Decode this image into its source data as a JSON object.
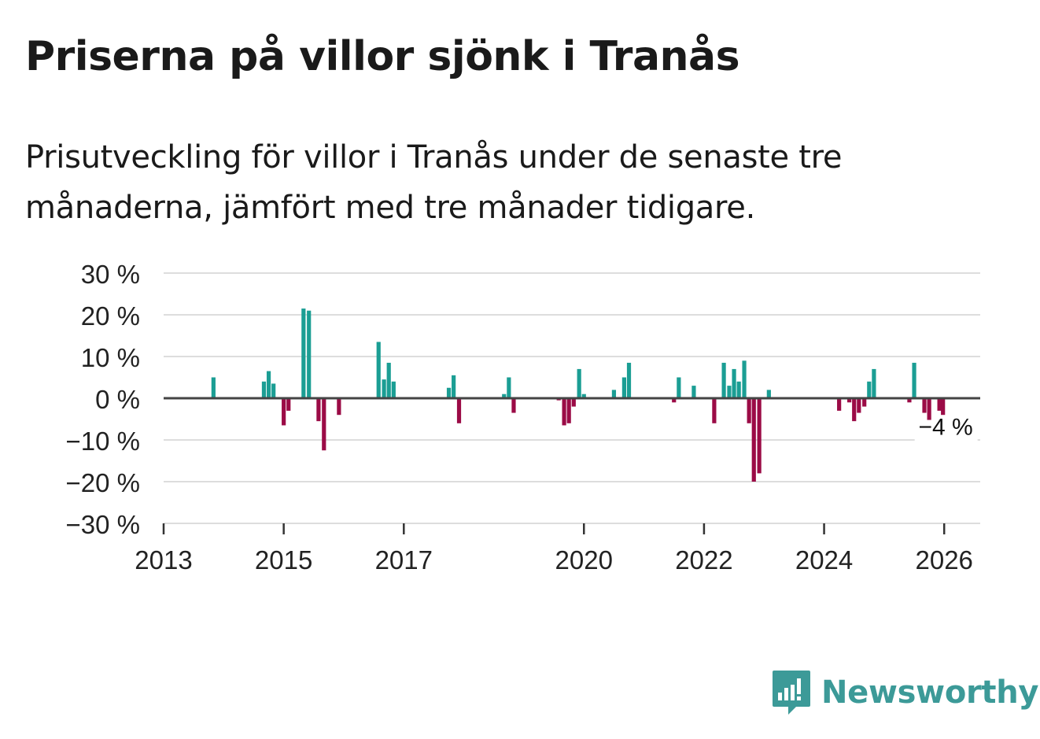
{
  "title": "Priserna på villor sjönk i Tranås",
  "subtitle": "Prisutveckling för villor i Tranås under de senaste tre månaderna, jämfört med tre månader tidigare.",
  "brand": {
    "name": "Newsworthy"
  },
  "colors": {
    "positive": "#1b9e94",
    "negative": "#9b0b46",
    "grid": "#dddddd",
    "zero_line": "#444444",
    "text": "#1a1a1a",
    "brand": "#3c9a98"
  },
  "chart_data": {
    "type": "bar",
    "title": "Priserna på villor sjönk i Tranås",
    "xlabel": "",
    "ylabel": "",
    "ylim": [
      -30,
      30
    ],
    "y_ticks": [
      30,
      20,
      10,
      0,
      -10,
      -20,
      -30
    ],
    "y_tick_labels": [
      "30 %",
      "20 %",
      "10 %",
      "0 %",
      "−10 %",
      "−20 %",
      "−30 %"
    ],
    "xlim": [
      2013.0,
      2026.6
    ],
    "x_ticks": [
      2013,
      2015,
      2017,
      2020,
      2022,
      2024,
      2026
    ],
    "x_tick_labels": [
      "2013",
      "2015",
      "2017",
      "2020",
      "2022",
      "2024",
      "2026"
    ],
    "annotation": {
      "text": "−4 %",
      "x": 2025.98,
      "y": -4
    },
    "x": [
      2013.83,
      2014.67,
      2014.75,
      2014.83,
      2015.0,
      2015.08,
      2015.33,
      2015.42,
      2015.58,
      2015.67,
      2015.92,
      2016.58,
      2016.67,
      2016.75,
      2016.83,
      2017.75,
      2017.83,
      2017.92,
      2018.67,
      2018.75,
      2018.83,
      2019.58,
      2019.67,
      2019.75,
      2019.83,
      2019.92,
      2020.0,
      2020.5,
      2020.67,
      2020.75,
      2021.5,
      2021.58,
      2021.83,
      2022.17,
      2022.33,
      2022.42,
      2022.5,
      2022.58,
      2022.67,
      2022.75,
      2022.83,
      2022.92,
      2023.08,
      2024.25,
      2024.42,
      2024.5,
      2024.58,
      2024.67,
      2024.75,
      2024.83,
      2025.42,
      2025.5,
      2025.67,
      2025.75,
      2025.92,
      2025.98
    ],
    "values": [
      5,
      4,
      6.5,
      3.5,
      -6.5,
      -3,
      21.5,
      21,
      -5.5,
      -12.5,
      -4,
      13.5,
      4.5,
      8.5,
      4,
      2.5,
      5.5,
      -6,
      1,
      5,
      -3.5,
      -0.5,
      -6.5,
      -6,
      -2,
      7,
      1,
      2,
      5,
      8.5,
      -1,
      5,
      3,
      -6,
      8.5,
      3,
      7,
      4,
      9,
      -6,
      -20,
      -18,
      2,
      -3,
      -1,
      -5.5,
      -3.5,
      -2,
      4,
      7,
      -1,
      8.5,
      -3.5,
      -7,
      -3,
      -4
    ]
  }
}
